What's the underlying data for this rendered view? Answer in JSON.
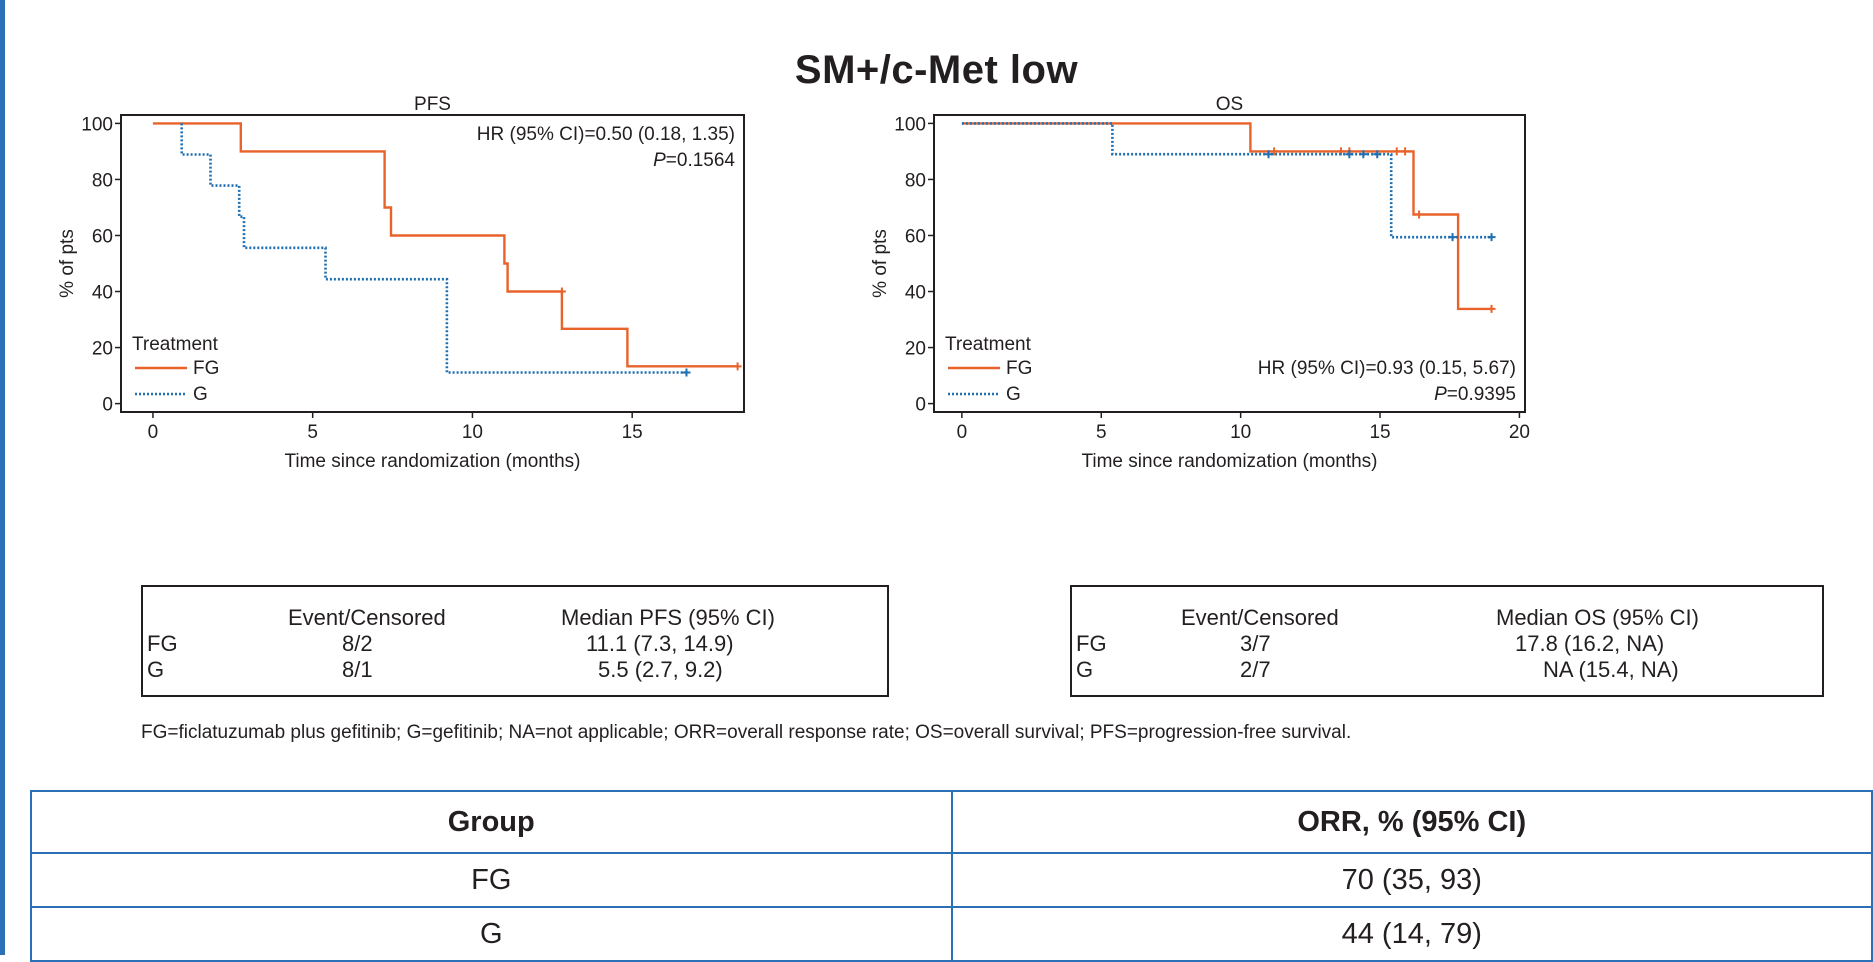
{
  "title": "SM+/c-Met low",
  "colors": {
    "fg": "#e8622a",
    "g": "#1f6fb2",
    "frame": "#231f20",
    "table_border": "#2b6fb6",
    "left_rule": "#2b6fb6"
  },
  "chart_data": [
    {
      "type": "line",
      "subtype": "kaplan-meier",
      "title": "PFS",
      "xlabel": "Time since randomization (months)",
      "ylabel": "% of pts",
      "xlim": [
        -1,
        18.5
      ],
      "ylim": [
        -3,
        103
      ],
      "x_ticks": [
        0,
        5,
        10,
        15
      ],
      "y_ticks": [
        0,
        20,
        40,
        60,
        80,
        100
      ],
      "legend_position": "bottom-left",
      "legend": {
        "title": "Treatment",
        "items": [
          "FG",
          "G"
        ]
      },
      "annotation": {
        "hr_text": "HR (95% CI)=0.50 (0.18, 1.35)",
        "p_label": "P",
        "p_value": "=0.1564",
        "position": "top-right"
      },
      "series": [
        {
          "name": "FG",
          "style": "solid",
          "points": [
            [
              0,
              100
            ],
            [
              2.75,
              100
            ],
            [
              2.75,
              90
            ],
            [
              7.25,
              90
            ],
            [
              7.25,
              70
            ],
            [
              7.45,
              70
            ],
            [
              7.45,
              60
            ],
            [
              11,
              60
            ],
            [
              11,
              50
            ],
            [
              11.1,
              50
            ],
            [
              11.1,
              40
            ],
            [
              12.8,
              40
            ],
            [
              12.8,
              26.7
            ],
            [
              14.85,
              26.7
            ],
            [
              14.85,
              13.3
            ],
            [
              18.3,
              13.3
            ]
          ],
          "censored": [
            [
              12.8,
              40
            ],
            [
              18.3,
              13.3
            ]
          ]
        },
        {
          "name": "G",
          "style": "dotted",
          "points": [
            [
              0.9,
              100
            ],
            [
              0.9,
              88.9
            ],
            [
              1.8,
              88.9
            ],
            [
              1.8,
              77.8
            ],
            [
              2.7,
              77.8
            ],
            [
              2.7,
              66.7
            ],
            [
              2.85,
              66.7
            ],
            [
              2.85,
              55.6
            ],
            [
              5.4,
              55.6
            ],
            [
              5.4,
              44.4
            ],
            [
              9.2,
              44.4
            ],
            [
              9.2,
              11.1
            ],
            [
              16.7,
              11.1
            ]
          ],
          "censored": [
            [
              16.7,
              11.1
            ]
          ]
        }
      ],
      "summary_table": {
        "headers": [
          "",
          "Event/Censored",
          "Median PFS (95% CI)"
        ],
        "rows": [
          [
            "FG",
            "8/2",
            "11.1 (7.3, 14.9)"
          ],
          [
            "G",
            "8/1",
            "5.5 (2.7, 9.2)"
          ]
        ]
      }
    },
    {
      "type": "line",
      "subtype": "kaplan-meier",
      "title": "OS",
      "xlabel": "Time since randomization (months)",
      "ylabel": "% of pts",
      "xlim": [
        -1,
        20.2
      ],
      "ylim": [
        -3,
        103
      ],
      "x_ticks": [
        0,
        5,
        10,
        15,
        20
      ],
      "y_ticks": [
        0,
        20,
        40,
        60,
        80,
        100
      ],
      "legend_position": "bottom-left",
      "legend": {
        "title": "Treatment",
        "items": [
          "FG",
          "G"
        ]
      },
      "annotation": {
        "hr_text": "HR (95% CI)=0.93 (0.15, 5.67)",
        "p_label": "P",
        "p_value": "=0.9395",
        "position": "bottom-right"
      },
      "series": [
        {
          "name": "FG",
          "style": "solid",
          "points": [
            [
              0,
              100
            ],
            [
              10.35,
              100
            ],
            [
              10.35,
              90
            ],
            [
              16.2,
              90
            ],
            [
              16.2,
              67.5
            ],
            [
              17.8,
              67.5
            ],
            [
              17.8,
              33.8
            ],
            [
              19.0,
              33.8
            ]
          ],
          "censored": [
            [
              11.2,
              90
            ],
            [
              13.6,
              90
            ],
            [
              13.9,
              90
            ],
            [
              15.6,
              90
            ],
            [
              15.9,
              90
            ],
            [
              16.4,
              67.5
            ],
            [
              19.0,
              33.8
            ]
          ]
        },
        {
          "name": "G",
          "style": "dotted",
          "points": [
            [
              0,
              100
            ],
            [
              5.4,
              100
            ],
            [
              5.4,
              89
            ],
            [
              15.4,
              89
            ],
            [
              15.4,
              59.4
            ],
            [
              19.0,
              59.4
            ]
          ],
          "censored": [
            [
              11.0,
              89
            ],
            [
              13.9,
              89
            ],
            [
              14.4,
              89
            ],
            [
              14.9,
              89
            ],
            [
              17.6,
              59.4
            ],
            [
              19.0,
              59.4
            ]
          ]
        }
      ],
      "summary_table": {
        "headers": [
          "",
          "Event/Censored",
          "Median OS (95% CI)"
        ],
        "rows": [
          [
            "FG",
            "3/7",
            "17.8 (16.2, NA)"
          ],
          [
            "G",
            "2/7",
            "NA (15.4, NA)"
          ]
        ]
      }
    }
  ],
  "footnote": "FG=ficlatuzumab plus gefitinib; G=gefitinib; NA=not applicable; ORR=overall response rate; OS=overall survival; PFS=progression-free survival.",
  "orr_table": {
    "headers": [
      "Group",
      "ORR, % (95% CI)"
    ],
    "rows": [
      [
        "FG",
        "70 (35, 93)"
      ],
      [
        "G",
        "44 (14, 79)"
      ]
    ]
  }
}
